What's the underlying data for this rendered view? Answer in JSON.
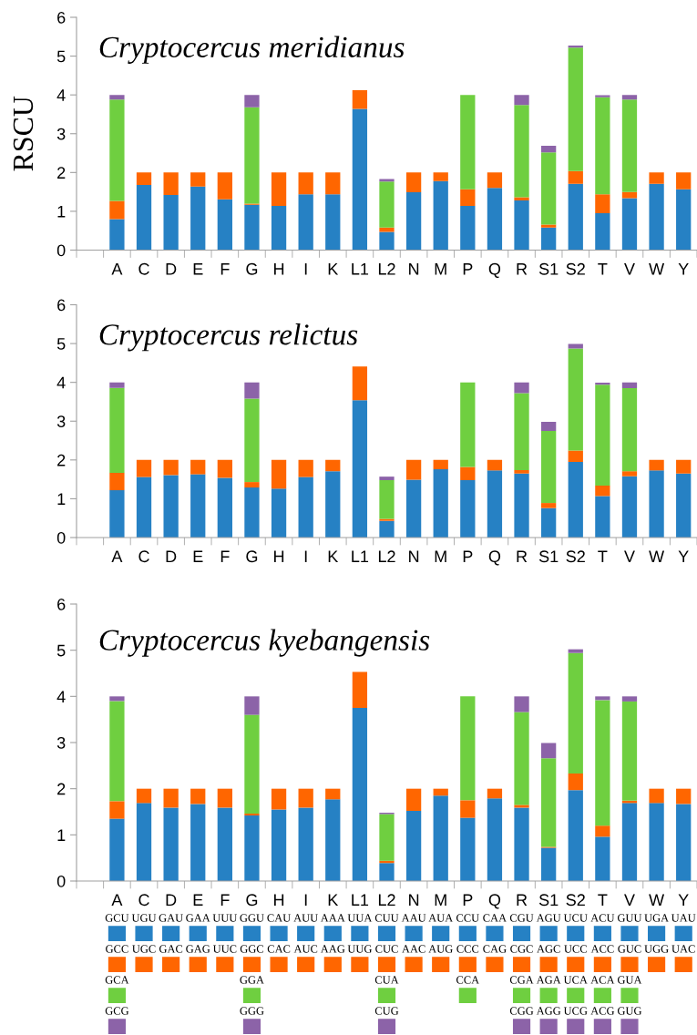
{
  "chart_data": [
    {
      "type": "bar",
      "stacked": true,
      "title": "Cryptocercus meridianus",
      "ylabel": "RSCU",
      "categories": [
        null,
        "A",
        "C",
        "D",
        "E",
        "F",
        "G",
        "H",
        "I",
        "K",
        "L1",
        "L2",
        "N",
        "M",
        "P",
        "Q",
        "R",
        "S1",
        "S2",
        "T",
        "V",
        "W",
        "Y"
      ],
      "ylim": [
        0,
        6
      ],
      "yticks": [
        0,
        1,
        2,
        3,
        4,
        5,
        6
      ],
      "grid": false,
      "series": [
        {
          "color": "#2681c4",
          "values": [
            null,
            0.8,
            1.68,
            1.42,
            1.64,
            1.31,
            1.17,
            1.14,
            1.44,
            1.44,
            3.64,
            0.47,
            1.49,
            1.78,
            1.14,
            1.6,
            1.28,
            0.58,
            1.71,
            0.95,
            1.34,
            1.71,
            1.57
          ]
        },
        {
          "color": "#ff6600",
          "values": [
            null,
            0.47,
            0.32,
            0.58,
            0.36,
            0.69,
            0.03,
            0.86,
            0.56,
            0.56,
            0.48,
            0.11,
            0.51,
            0.22,
            0.43,
            0.4,
            0.08,
            0.08,
            0.33,
            0.49,
            0.16,
            0.29,
            0.43
          ]
        },
        {
          "color": "#6fcf40",
          "values": [
            null,
            2.61,
            null,
            null,
            null,
            null,
            2.48,
            null,
            null,
            null,
            null,
            1.19,
            null,
            null,
            2.43,
            null,
            2.38,
            1.86,
            3.18,
            2.5,
            2.38,
            null,
            null
          ]
        },
        {
          "color": "#8c63a8",
          "values": [
            null,
            0.12,
            null,
            null,
            null,
            null,
            0.32,
            null,
            null,
            null,
            null,
            0.06,
            null,
            null,
            null,
            null,
            0.26,
            0.17,
            0.05,
            0.05,
            0.12,
            null,
            null
          ]
        }
      ]
    },
    {
      "type": "bar",
      "stacked": true,
      "title": "Cryptocercus relictus",
      "categories": [
        null,
        "A",
        "C",
        "D",
        "E",
        "F",
        "G",
        "H",
        "I",
        "K",
        "L1",
        "L2",
        "N",
        "M",
        "P",
        "Q",
        "R",
        "S1",
        "S2",
        "T",
        "V",
        "W",
        "Y"
      ],
      "ylim": [
        0,
        6
      ],
      "yticks": [
        0,
        1,
        2,
        3,
        4,
        5,
        6
      ],
      "grid": false,
      "series": [
        {
          "color": "#2681c4",
          "values": [
            null,
            1.22,
            1.56,
            1.61,
            1.63,
            1.54,
            1.29,
            1.26,
            1.56,
            1.71,
            3.54,
            0.43,
            1.49,
            1.76,
            1.48,
            1.73,
            1.65,
            0.76,
            1.95,
            1.07,
            1.58,
            1.73,
            1.65
          ]
        },
        {
          "color": "#ff6600",
          "values": [
            null,
            0.45,
            0.44,
            0.39,
            0.37,
            0.46,
            0.14,
            0.74,
            0.44,
            0.29,
            0.87,
            0.05,
            0.51,
            0.24,
            0.34,
            0.27,
            0.09,
            0.13,
            0.29,
            0.27,
            0.13,
            0.27,
            0.35
          ]
        },
        {
          "color": "#6fcf40",
          "values": [
            null,
            2.19,
            null,
            null,
            null,
            null,
            2.15,
            null,
            null,
            null,
            null,
            1.0,
            null,
            null,
            2.18,
            null,
            1.98,
            1.86,
            2.63,
            2.6,
            2.14,
            null,
            null
          ]
        },
        {
          "color": "#8c63a8",
          "values": [
            null,
            0.14,
            null,
            null,
            null,
            null,
            0.42,
            null,
            null,
            null,
            null,
            0.09,
            null,
            null,
            null,
            null,
            0.28,
            0.23,
            0.12,
            0.05,
            0.15,
            null,
            null
          ]
        }
      ]
    },
    {
      "type": "bar",
      "stacked": true,
      "title": "Cryptocercus kyebangensis",
      "categories": [
        null,
        "A",
        "C",
        "D",
        "E",
        "F",
        "G",
        "H",
        "I",
        "K",
        "L1",
        "L2",
        "N",
        "M",
        "P",
        "Q",
        "R",
        "S1",
        "S2",
        "T",
        "V",
        "W",
        "Y"
      ],
      "ylim": [
        0,
        6
      ],
      "yticks": [
        0,
        1,
        2,
        3,
        4,
        5,
        6
      ],
      "grid": false,
      "series": [
        {
          "color": "#2681c4",
          "values": [
            null,
            1.35,
            1.69,
            1.59,
            1.67,
            1.59,
            1.42,
            1.55,
            1.59,
            1.77,
            3.75,
            0.39,
            1.52,
            1.85,
            1.37,
            1.79,
            1.59,
            0.72,
            1.97,
            0.96,
            1.69,
            1.69,
            1.67
          ]
        },
        {
          "color": "#ff6600",
          "values": [
            null,
            0.38,
            0.31,
            0.41,
            0.33,
            0.41,
            0.04,
            0.45,
            0.41,
            0.23,
            0.78,
            0.05,
            0.48,
            0.15,
            0.38,
            0.21,
            0.06,
            0.02,
            0.36,
            0.24,
            0.05,
            0.31,
            0.33
          ]
        },
        {
          "color": "#6fcf40",
          "values": [
            null,
            2.17,
            null,
            null,
            null,
            null,
            2.14,
            null,
            null,
            null,
            null,
            1.01,
            null,
            null,
            2.25,
            null,
            2.01,
            1.92,
            2.61,
            2.72,
            2.15,
            null,
            null
          ]
        },
        {
          "color": "#8c63a8",
          "values": [
            null,
            0.1,
            null,
            null,
            null,
            null,
            0.4,
            null,
            null,
            null,
            null,
            0.03,
            null,
            null,
            null,
            null,
            0.34,
            0.33,
            0.08,
            0.08,
            0.11,
            null,
            null
          ]
        }
      ]
    },
    {
      "type": "other",
      "colors": [
        "#2681c4",
        "#ff6600",
        "#6fcf40",
        "#8c63a8"
      ],
      "cell_labels": [
        [
          null,
          "GCU",
          "UGU",
          "GAU",
          "GAA",
          "UUU",
          "GGU",
          "CAU",
          "AUU",
          "AAA",
          "UUA",
          "CUU",
          "AAU",
          "AUA",
          "CCU",
          "CAA",
          "CGU",
          "AGU",
          "UCU",
          "ACU",
          "GUU",
          "UGA",
          "UAU"
        ],
        [
          null,
          "GCC",
          "UGC",
          "GAC",
          "GAG",
          "UUC",
          "GGC",
          "CAC",
          "AUC",
          "AAG",
          "UUG",
          "CUC",
          "AAC",
          "AUG",
          "CCC",
          "CAG",
          "CGC",
          "AGC",
          "UCC",
          "ACC",
          "GUC",
          "UGG",
          "UAC"
        ],
        [
          null,
          "GCA",
          null,
          null,
          null,
          null,
          "GGA",
          null,
          null,
          null,
          null,
          "CUA",
          null,
          null,
          "CCA",
          null,
          "CGA",
          "AGA",
          "UCA",
          "ACA",
          "GUA",
          null,
          null
        ],
        [
          null,
          "GCG",
          null,
          null,
          null,
          null,
          "GGG",
          null,
          null,
          null,
          null,
          "CUG",
          null,
          null,
          null,
          null,
          "CGG",
          "AGG",
          "UCG",
          "ACG",
          "GUG",
          null,
          null
        ]
      ]
    }
  ]
}
